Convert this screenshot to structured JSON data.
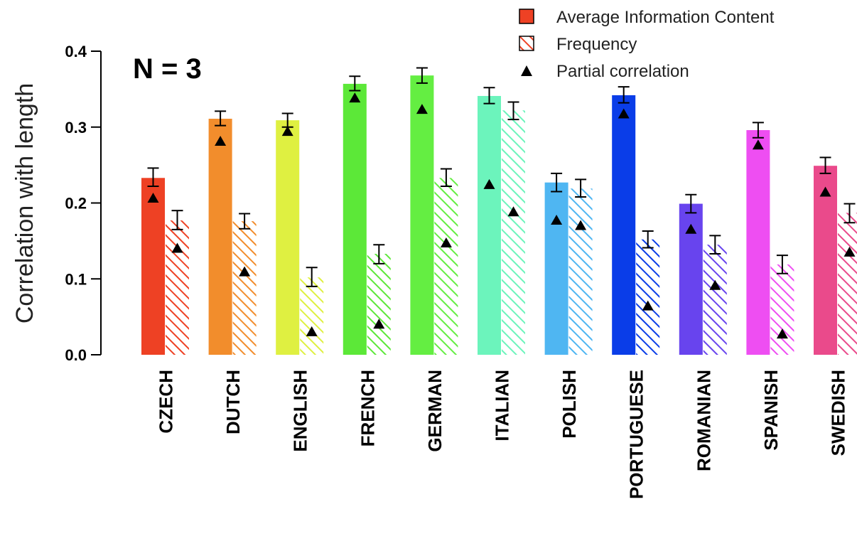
{
  "chart_data": {
    "type": "bar",
    "annotation": "N = 3",
    "ylabel": "Correlation with length",
    "ylim": [
      0,
      0.4
    ],
    "yticks": [
      "0.0",
      "0.1",
      "0.2",
      "0.3",
      "0.4"
    ],
    "legend_position": "top-right",
    "legend": [
      {
        "label": "Average Information Content",
        "symbol": "solid-box"
      },
      {
        "label": "Frequency",
        "symbol": "hatched-box"
      },
      {
        "label": "Partial correlation",
        "symbol": "triangle"
      }
    ],
    "categories": [
      "CZECH",
      "DUTCH",
      "ENGLISH",
      "FRENCH",
      "GERMAN",
      "ITALIAN",
      "POLISH",
      "PORTUGUESE",
      "ROMANIAN",
      "SPANISH",
      "SWEDISH"
    ],
    "colors": [
      "#ee4124",
      "#f28d2c",
      "#dff041",
      "#5ce838",
      "#64ee42",
      "#6cf4bc",
      "#4fb6f2",
      "#0a3de8",
      "#6844ee",
      "#ee4ef2",
      "#ea4a8b"
    ],
    "series": [
      {
        "name": "Average Information Content",
        "style": "solid",
        "values": [
          0.233,
          0.311,
          0.309,
          0.357,
          0.368,
          0.341,
          0.227,
          0.342,
          0.199,
          0.296,
          0.249
        ],
        "err_low": [
          0.222,
          0.302,
          0.3,
          0.348,
          0.358,
          0.331,
          0.215,
          0.332,
          0.187,
          0.286,
          0.239
        ],
        "err_high": [
          0.246,
          0.321,
          0.318,
          0.367,
          0.378,
          0.352,
          0.239,
          0.353,
          0.211,
          0.306,
          0.26
        ],
        "partial": [
          0.207,
          0.282,
          0.295,
          0.339,
          0.324,
          0.225,
          0.178,
          0.318,
          0.166,
          0.277,
          0.215
        ]
      },
      {
        "name": "Frequency",
        "style": "hatched",
        "values": [
          0.177,
          0.176,
          0.102,
          0.133,
          0.233,
          0.322,
          0.219,
          0.152,
          0.145,
          0.119,
          0.187
        ],
        "err_low": [
          0.165,
          0.166,
          0.09,
          0.12,
          0.222,
          0.31,
          0.208,
          0.141,
          0.133,
          0.107,
          0.174
        ],
        "err_high": [
          0.19,
          0.186,
          0.115,
          0.145,
          0.245,
          0.333,
          0.231,
          0.163,
          0.157,
          0.131,
          0.199
        ],
        "partial": [
          0.141,
          0.11,
          0.031,
          0.041,
          0.148,
          0.189,
          0.171,
          0.065,
          0.092,
          0.028,
          0.136
        ]
      }
    ]
  }
}
